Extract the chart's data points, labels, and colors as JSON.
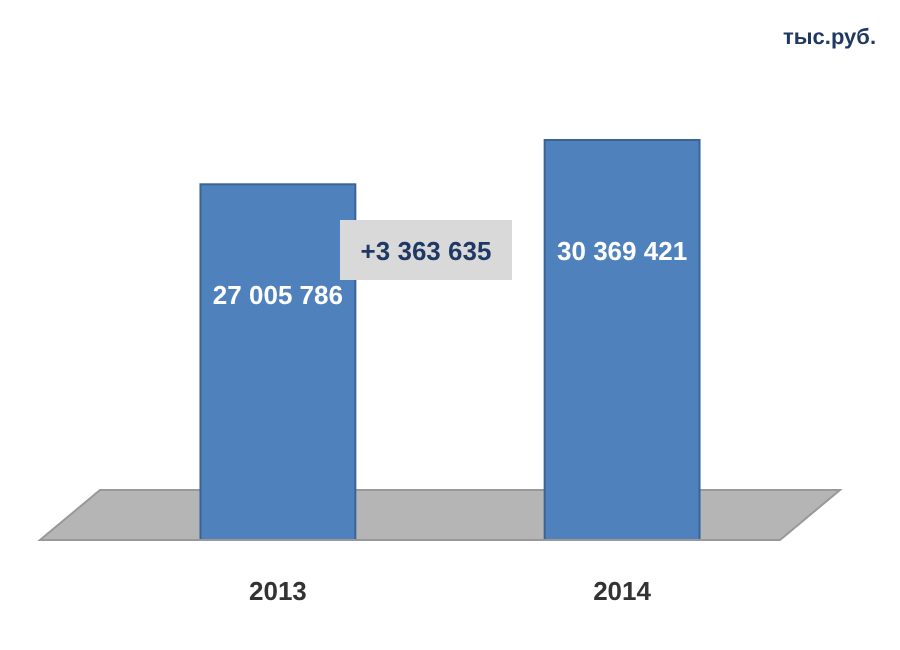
{
  "chart_data": {
    "type": "bar",
    "categories": [
      "2013",
      "2014"
    ],
    "values": [
      27005786,
      30369421
    ],
    "color": "#4f81bd",
    "value_labels": [
      "27 005 786",
      "30 369 421"
    ],
    "annotations": [
      "тыс.руб.",
      "+3 363 635"
    ],
    "grid": false
  }
}
